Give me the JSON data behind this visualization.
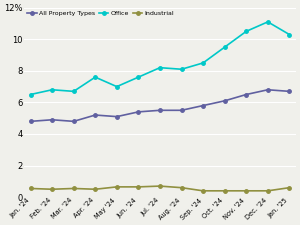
{
  "labels": [
    "Jan. '24",
    "Feb. '24",
    "Mar. '24",
    "Apr. '24",
    "May '24",
    "Jun. '24",
    "Jul. '24",
    "Aug. '24",
    "Sep. '24",
    "Oct. '24",
    "Nov. '24",
    "Dec. '24",
    "Jan. '25"
  ],
  "all_property": [
    4.8,
    4.9,
    4.8,
    5.2,
    5.1,
    5.4,
    5.5,
    5.5,
    5.8,
    6.1,
    6.5,
    6.8,
    6.7
  ],
  "office": [
    6.5,
    6.8,
    6.7,
    7.6,
    7.0,
    7.6,
    8.2,
    8.1,
    8.5,
    9.5,
    10.5,
    11.1,
    10.3
  ],
  "industrial": [
    0.55,
    0.5,
    0.55,
    0.5,
    0.65,
    0.65,
    0.7,
    0.6,
    0.4,
    0.4,
    0.4,
    0.4,
    0.6
  ],
  "all_property_color": "#6060a0",
  "office_color": "#00c8c8",
  "industrial_color": "#909040",
  "ylim": [
    0,
    12
  ],
  "yticks": [
    0,
    2,
    4,
    6,
    8,
    10,
    12
  ],
  "legend_labels": [
    "All Property Types",
    "Office",
    "Industrial"
  ],
  "background_color": "#f0f0eb",
  "grid_color": "#ffffff",
  "line_width": 1.2,
  "marker_size": 2.5
}
